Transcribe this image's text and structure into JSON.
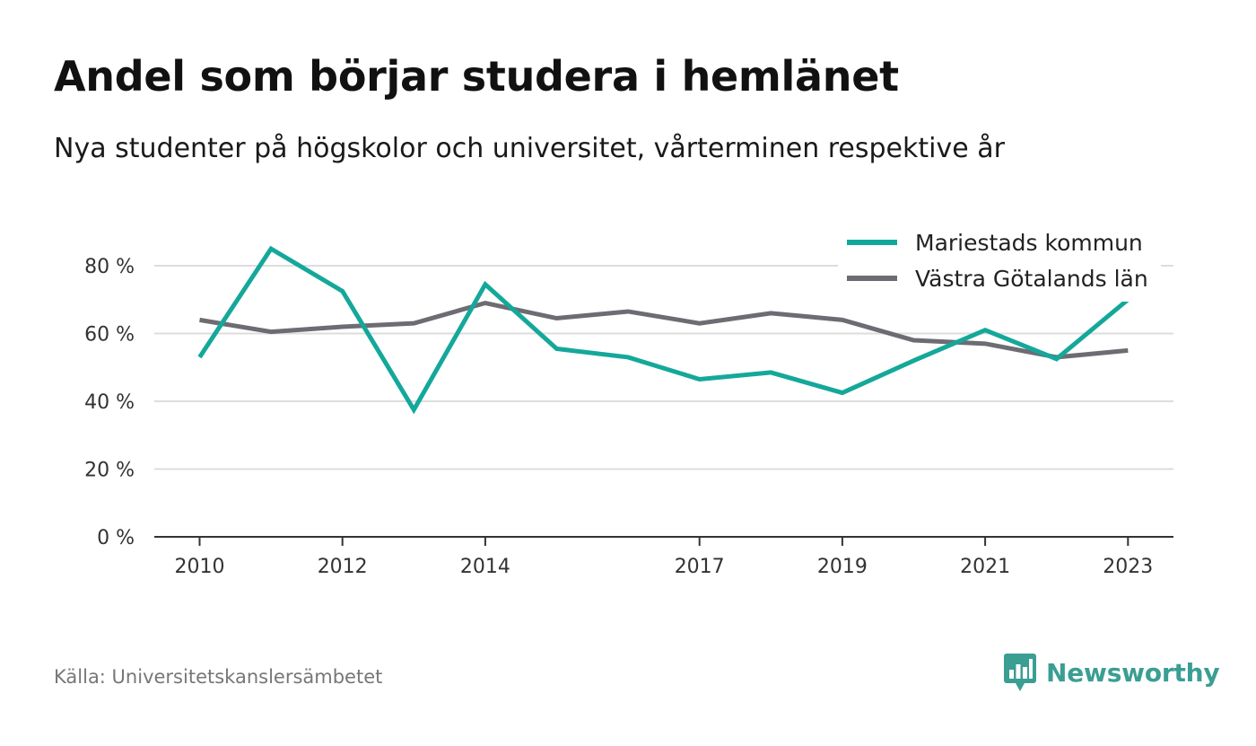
{
  "header": {
    "title": "Andel som börjar studera i hemlänet",
    "subtitle": "Nya studenter på högskolor och universitet, vårterminen respektive år"
  },
  "footer": {
    "source": "Källa: Universitetskanslersämbetet",
    "brand": "Newsworthy",
    "brand_icon": "bar-chart-speech-bubble-icon"
  },
  "colors": {
    "mariestad": "#14a89a",
    "vastra_gotaland": "#6e6c73",
    "grid": "#dddddd",
    "axis": "#333333",
    "brand": "#3a9e93"
  },
  "chart_data": {
    "type": "line",
    "title": "Andel som börjar studera i hemlänet",
    "subtitle": "Nya studenter på högskolor och universitet, vårterminen respektive år",
    "xlabel": "",
    "ylabel": "",
    "x": [
      2010,
      2011,
      2012,
      2013,
      2014,
      2015,
      2016,
      2017,
      2018,
      2019,
      2020,
      2021,
      2022,
      2023
    ],
    "x_tick_labels": [
      "2010",
      "2012",
      "2014",
      "2017",
      "2019",
      "2021",
      "2023"
    ],
    "x_tick_values": [
      2010,
      2012,
      2014,
      2017,
      2019,
      2021,
      2023
    ],
    "y_ticks": [
      0,
      20,
      40,
      60,
      80
    ],
    "y_tick_labels": [
      "0 %",
      "20 %",
      "40 %",
      "60 %",
      "80 %"
    ],
    "ylim": [
      0,
      90
    ],
    "grid": true,
    "legend_position": "top-right",
    "series": [
      {
        "name": "Mariestads kommun",
        "color": "#14a89a",
        "values": [
          53,
          85,
          72.5,
          37.5,
          74.5,
          55.5,
          53,
          46.5,
          48.5,
          42.5,
          52,
          61,
          52.5,
          70
        ]
      },
      {
        "name": "Västra Götalands län",
        "color": "#6e6c73",
        "values": [
          64,
          60.5,
          62,
          63,
          69,
          64.5,
          66.5,
          63,
          66,
          64,
          58,
          57,
          53,
          55
        ]
      }
    ]
  }
}
